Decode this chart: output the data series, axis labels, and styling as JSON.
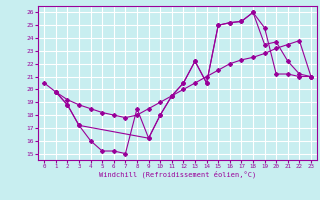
{
  "xlabel": "Windchill (Refroidissement éolien,°C)",
  "bg_color": "#c8eef0",
  "grid_color": "#ffffff",
  "line_color": "#990099",
  "xlim": [
    -0.5,
    23.5
  ],
  "ylim": [
    14.5,
    26.5
  ],
  "xticks": [
    0,
    1,
    2,
    3,
    4,
    5,
    6,
    7,
    8,
    9,
    10,
    11,
    12,
    13,
    14,
    15,
    16,
    17,
    18,
    19,
    20,
    21,
    22,
    23
  ],
  "yticks": [
    15,
    16,
    17,
    18,
    19,
    20,
    21,
    22,
    23,
    24,
    25,
    26
  ],
  "line1_x": [
    0,
    1,
    2,
    3,
    9,
    10,
    11,
    12,
    13,
    14,
    15,
    16,
    17,
    18,
    19,
    20,
    21,
    22,
    23
  ],
  "line1_y": [
    20.5,
    19.8,
    18.8,
    17.2,
    16.2,
    18.0,
    19.5,
    20.5,
    22.2,
    20.5,
    25.0,
    25.2,
    25.3,
    26.0,
    24.8,
    21.2,
    21.2,
    21.0,
    21.0
  ],
  "line2_x": [
    1,
    2,
    3,
    4,
    5,
    6,
    7,
    8,
    9,
    10,
    11,
    12,
    13,
    14,
    15,
    16,
    17,
    18,
    19,
    20,
    21,
    22,
    23
  ],
  "line2_y": [
    19.8,
    18.8,
    17.2,
    16.0,
    15.2,
    15.2,
    15.0,
    18.5,
    16.2,
    18.0,
    19.5,
    20.5,
    22.2,
    20.5,
    25.0,
    25.2,
    25.3,
    26.0,
    23.5,
    23.7,
    22.2,
    21.2,
    21.0
  ],
  "line3_x": [
    1,
    2,
    3,
    4,
    5,
    6,
    7,
    8,
    9,
    10,
    11,
    12,
    13,
    14,
    15,
    16,
    17,
    18,
    19,
    20,
    21,
    22,
    23
  ],
  "line3_y": [
    19.8,
    19.2,
    18.8,
    18.5,
    18.2,
    18.0,
    17.8,
    18.0,
    18.5,
    19.0,
    19.5,
    20.0,
    20.5,
    21.0,
    21.5,
    22.0,
    22.3,
    22.5,
    22.8,
    23.2,
    23.5,
    23.8,
    21.0
  ]
}
